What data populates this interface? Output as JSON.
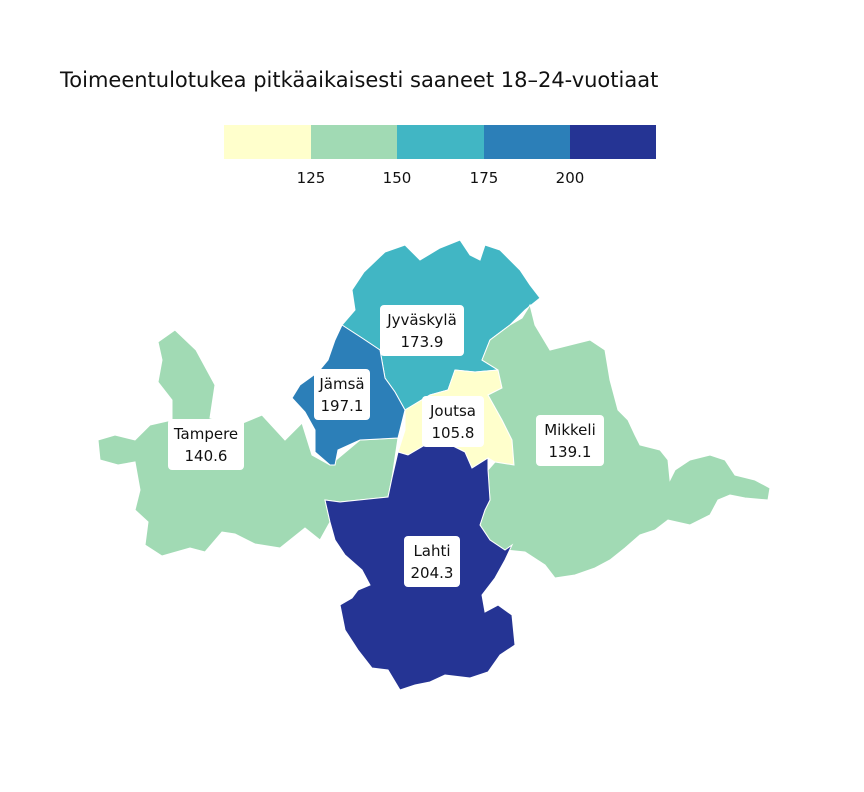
{
  "title": "Toimeentulotukea pitkäaikaisesti saaneet 18–24-vuotiaat",
  "legend": {
    "bins": [
      {
        "color": "#ffffcc"
      },
      {
        "color": "#a1dab4"
      },
      {
        "color": "#41b6c4"
      },
      {
        "color": "#2c7fb8"
      },
      {
        "color": "#253494"
      }
    ],
    "ticks": [
      "125",
      "150",
      "175",
      "200"
    ]
  },
  "regions": [
    {
      "id": "tampere",
      "name": "Tampere",
      "value": "140.6",
      "color": "#a1dab4"
    },
    {
      "id": "jyvaskyla",
      "name": "Jyväskylä",
      "value": "173.9",
      "color": "#41b6c4"
    },
    {
      "id": "jamsa",
      "name": "Jämsä",
      "value": "197.1",
      "color": "#2c7fb8"
    },
    {
      "id": "joutsa",
      "name": "Joutsa",
      "value": "105.8",
      "color": "#ffffcc"
    },
    {
      "id": "mikkeli",
      "name": "Mikkeli",
      "value": "139.1",
      "color": "#a1dab4"
    },
    {
      "id": "lahti",
      "name": "Lahti",
      "value": "204.3",
      "color": "#253494"
    }
  ]
}
